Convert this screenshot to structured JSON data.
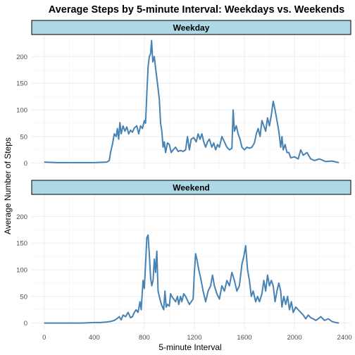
{
  "chart_data": {
    "type": "line",
    "title": "Average Steps by 5-minute Interval: Weekdays vs. Weekends",
    "xlabel": "5-minute Interval",
    "ylabel": "Average Number of Steps",
    "xlim": [
      -100,
      2450
    ],
    "ylim": [
      -11,
      240
    ],
    "x_ticks": [
      0,
      400,
      800,
      1200,
      1600,
      2000,
      2400
    ],
    "y_ticks": [
      0,
      50,
      100,
      150,
      200
    ],
    "grid": true,
    "line_color": "#4682b4",
    "strip_fill": "#add8e6",
    "facets": [
      {
        "label": "Weekday",
        "points": [
          [
            0,
            2
          ],
          [
            100,
            1
          ],
          [
            200,
            1
          ],
          [
            300,
            1
          ],
          [
            400,
            1
          ],
          [
            500,
            2
          ],
          [
            520,
            5
          ],
          [
            530,
            20
          ],
          [
            545,
            35
          ],
          [
            560,
            55
          ],
          [
            575,
            50
          ],
          [
            585,
            65
          ],
          [
            595,
            45
          ],
          [
            605,
            76
          ],
          [
            615,
            55
          ],
          [
            630,
            70
          ],
          [
            645,
            60
          ],
          [
            660,
            68
          ],
          [
            675,
            55
          ],
          [
            690,
            62
          ],
          [
            705,
            58
          ],
          [
            720,
            66
          ],
          [
            740,
            70
          ],
          [
            755,
            55
          ],
          [
            770,
            70
          ],
          [
            785,
            65
          ],
          [
            800,
            80
          ],
          [
            810,
            75
          ],
          [
            820,
            130
          ],
          [
            830,
            180
          ],
          [
            840,
            200
          ],
          [
            850,
            205
          ],
          [
            858,
            230
          ],
          [
            868,
            190
          ],
          [
            880,
            200
          ],
          [
            890,
            178
          ],
          [
            900,
            160
          ],
          [
            910,
            140
          ],
          [
            920,
            120
          ],
          [
            930,
            75
          ],
          [
            940,
            60
          ],
          [
            950,
            30
          ],
          [
            960,
            40
          ],
          [
            970,
            20
          ],
          [
            985,
            38
          ],
          [
            1000,
            35
          ],
          [
            1015,
            20
          ],
          [
            1030,
            25
          ],
          [
            1050,
            30
          ],
          [
            1070,
            22
          ],
          [
            1090,
            24
          ],
          [
            1110,
            22
          ],
          [
            1130,
            25
          ],
          [
            1145,
            50
          ],
          [
            1160,
            25
          ],
          [
            1175,
            45
          ],
          [
            1195,
            48
          ],
          [
            1215,
            40
          ],
          [
            1230,
            55
          ],
          [
            1245,
            45
          ],
          [
            1260,
            55
          ],
          [
            1275,
            40
          ],
          [
            1290,
            30
          ],
          [
            1305,
            40
          ],
          [
            1320,
            45
          ],
          [
            1340,
            30
          ],
          [
            1355,
            38
          ],
          [
            1370,
            25
          ],
          [
            1385,
            35
          ],
          [
            1400,
            30
          ],
          [
            1420,
            50
          ],
          [
            1440,
            40
          ],
          [
            1460,
            30
          ],
          [
            1480,
            25
          ],
          [
            1500,
            28
          ],
          [
            1510,
            100
          ],
          [
            1520,
            60
          ],
          [
            1535,
            70
          ],
          [
            1550,
            55
          ],
          [
            1565,
            45
          ],
          [
            1580,
            30
          ],
          [
            1600,
            25
          ],
          [
            1620,
            30
          ],
          [
            1640,
            28
          ],
          [
            1660,
            30
          ],
          [
            1680,
            38
          ],
          [
            1695,
            55
          ],
          [
            1710,
            65
          ],
          [
            1725,
            50
          ],
          [
            1740,
            80
          ],
          [
            1755,
            70
          ],
          [
            1770,
            60
          ],
          [
            1785,
            85
          ],
          [
            1800,
            70
          ],
          [
            1815,
            90
          ],
          [
            1830,
            116
          ],
          [
            1845,
            100
          ],
          [
            1860,
            80
          ],
          [
            1875,
            60
          ],
          [
            1890,
            30
          ],
          [
            1900,
            50
          ],
          [
            1910,
            25
          ],
          [
            1925,
            35
          ],
          [
            1940,
            20
          ],
          [
            1955,
            20
          ],
          [
            1970,
            10
          ],
          [
            2000,
            12
          ],
          [
            2030,
            8
          ],
          [
            2050,
            25
          ],
          [
            2070,
            15
          ],
          [
            2100,
            20
          ],
          [
            2130,
            8
          ],
          [
            2160,
            5
          ],
          [
            2200,
            8
          ],
          [
            2250,
            3
          ],
          [
            2300,
            4
          ],
          [
            2355,
            1
          ]
        ]
      },
      {
        "label": "Weekend",
        "points": [
          [
            0,
            0
          ],
          [
            100,
            0
          ],
          [
            200,
            0
          ],
          [
            300,
            0
          ],
          [
            400,
            1
          ],
          [
            450,
            1
          ],
          [
            500,
            2
          ],
          [
            530,
            3
          ],
          [
            560,
            5
          ],
          [
            580,
            8
          ],
          [
            600,
            12
          ],
          [
            615,
            6
          ],
          [
            630,
            15
          ],
          [
            650,
            12
          ],
          [
            670,
            20
          ],
          [
            690,
            10
          ],
          [
            705,
            12
          ],
          [
            720,
            20
          ],
          [
            735,
            25
          ],
          [
            750,
            20
          ],
          [
            765,
            40
          ],
          [
            775,
            25
          ],
          [
            790,
            80
          ],
          [
            800,
            65
          ],
          [
            810,
            110
          ],
          [
            820,
            160
          ],
          [
            830,
            165
          ],
          [
            840,
            130
          ],
          [
            850,
            85
          ],
          [
            860,
            70
          ],
          [
            870,
            80
          ],
          [
            880,
            120
          ],
          [
            890,
            95
          ],
          [
            900,
            135
          ],
          [
            910,
            60
          ],
          [
            920,
            50
          ],
          [
            930,
            40
          ],
          [
            945,
            30
          ],
          [
            955,
            25
          ],
          [
            965,
            60
          ],
          [
            975,
            30
          ],
          [
            985,
            35
          ],
          [
            1000,
            32
          ],
          [
            1010,
            55
          ],
          [
            1020,
            50
          ],
          [
            1035,
            45
          ],
          [
            1050,
            40
          ],
          [
            1065,
            50
          ],
          [
            1075,
            35
          ],
          [
            1090,
            50
          ],
          [
            1100,
            40
          ],
          [
            1115,
            55
          ],
          [
            1130,
            50
          ],
          [
            1150,
            40
          ],
          [
            1160,
            35
          ],
          [
            1175,
            40
          ],
          [
            1190,
            45
          ],
          [
            1200,
            95
          ],
          [
            1210,
            130
          ],
          [
            1220,
            120
          ],
          [
            1235,
            100
          ],
          [
            1250,
            85
          ],
          [
            1270,
            60
          ],
          [
            1290,
            40
          ],
          [
            1310,
            60
          ],
          [
            1330,
            70
          ],
          [
            1345,
            90
          ],
          [
            1360,
            70
          ],
          [
            1380,
            55
          ],
          [
            1400,
            45
          ],
          [
            1420,
            70
          ],
          [
            1440,
            60
          ],
          [
            1460,
            80
          ],
          [
            1480,
            70
          ],
          [
            1500,
            95
          ],
          [
            1520,
            80
          ],
          [
            1540,
            60
          ],
          [
            1560,
            70
          ],
          [
            1580,
            110
          ],
          [
            1595,
            125
          ],
          [
            1610,
            145
          ],
          [
            1625,
            100
          ],
          [
            1640,
            80
          ],
          [
            1655,
            50
          ],
          [
            1670,
            60
          ],
          [
            1690,
            40
          ],
          [
            1705,
            50
          ],
          [
            1720,
            40
          ],
          [
            1740,
            55
          ],
          [
            1755,
            80
          ],
          [
            1770,
            60
          ],
          [
            1785,
            90
          ],
          [
            1800,
            70
          ],
          [
            1815,
            80
          ],
          [
            1830,
            70
          ],
          [
            1845,
            40
          ],
          [
            1860,
            60
          ],
          [
            1875,
            75
          ],
          [
            1890,
            60
          ],
          [
            1900,
            30
          ],
          [
            1915,
            50
          ],
          [
            1930,
            35
          ],
          [
            1945,
            50
          ],
          [
            1960,
            25
          ],
          [
            1975,
            40
          ],
          [
            1990,
            20
          ],
          [
            2010,
            30
          ],
          [
            2030,
            25
          ],
          [
            2050,
            20
          ],
          [
            2070,
            15
          ],
          [
            2090,
            8
          ],
          [
            2110,
            15
          ],
          [
            2130,
            10
          ],
          [
            2150,
            8
          ],
          [
            2170,
            5
          ],
          [
            2190,
            8
          ],
          [
            2210,
            12
          ],
          [
            2240,
            5
          ],
          [
            2270,
            8
          ],
          [
            2300,
            3
          ],
          [
            2330,
            1
          ],
          [
            2355,
            0
          ]
        ]
      }
    ]
  }
}
